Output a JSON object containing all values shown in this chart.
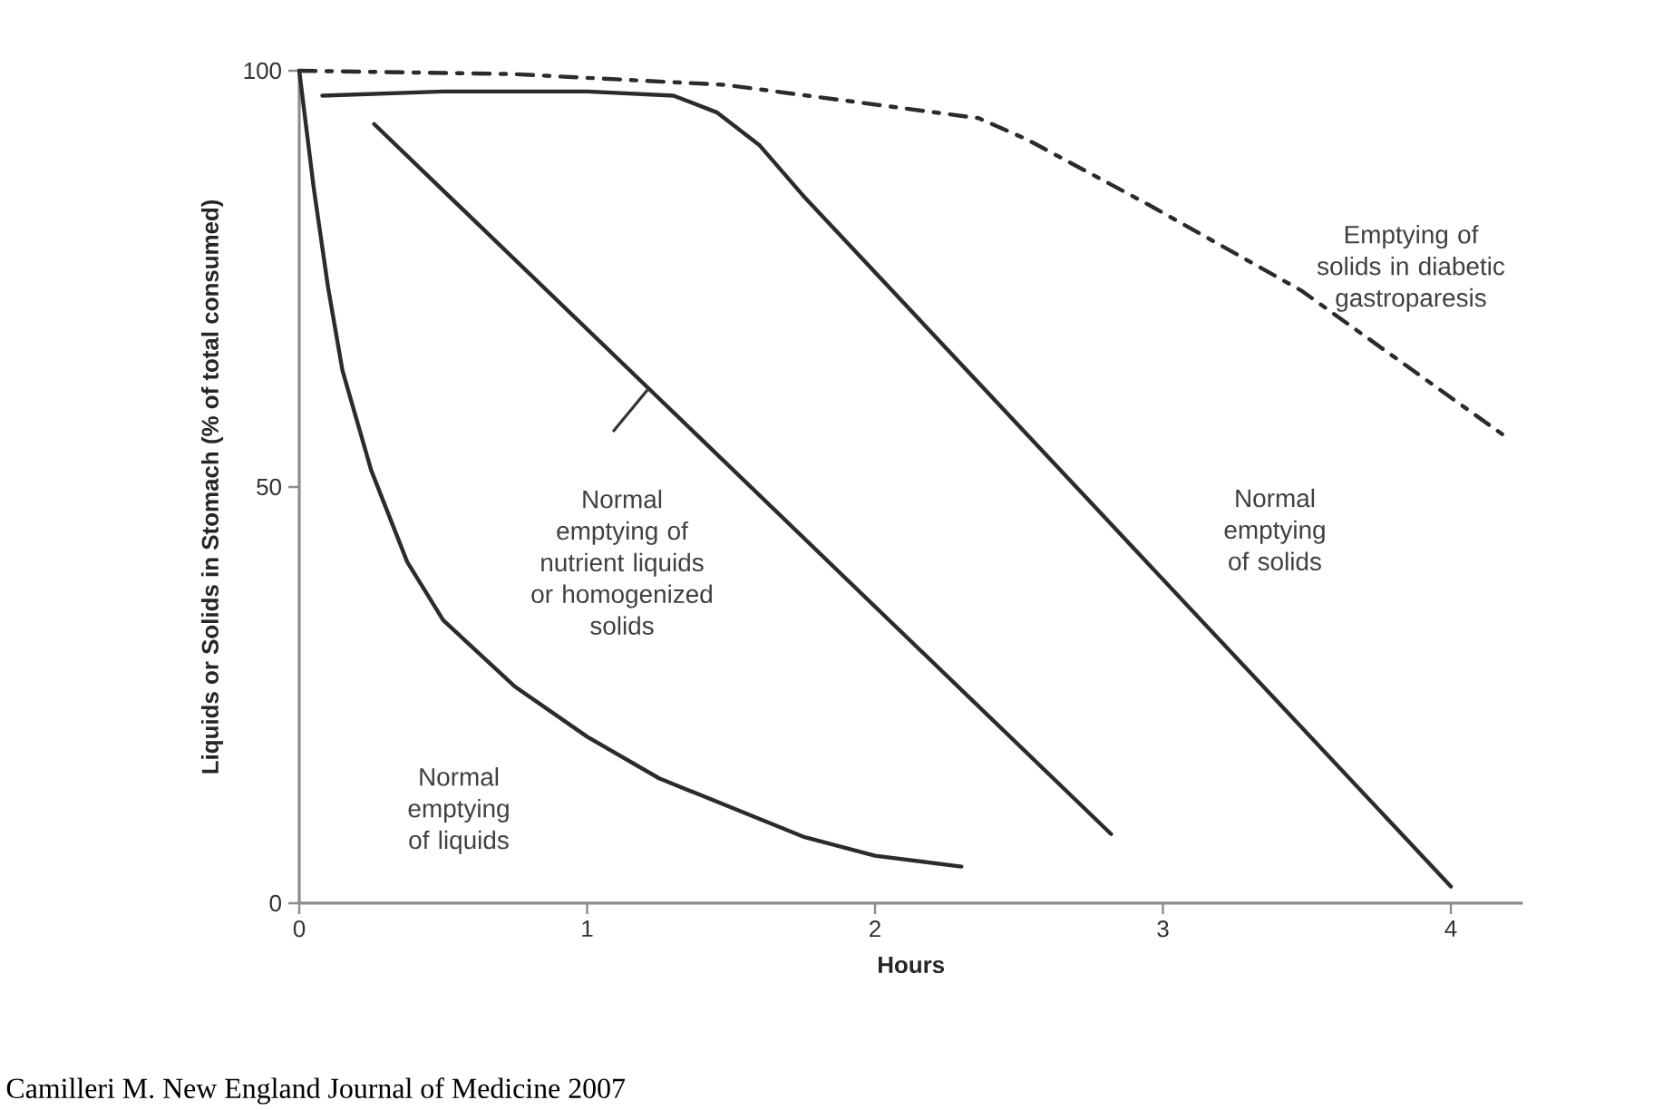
{
  "chart_data": {
    "type": "line",
    "xlabel": "Hours",
    "ylabel": "Liquids or Solids in Stomach (% of total consumed)",
    "xlim": [
      0,
      4.25
    ],
    "ylim": [
      0,
      100
    ],
    "xticks": [
      0,
      1,
      2,
      3,
      4
    ],
    "yticks": [
      0,
      50,
      100
    ],
    "marker": "none",
    "series": [
      {
        "color": "#2b2b2b",
        "line_style": "solid",
        "x": [
          0,
          0.05,
          0.1,
          0.15,
          0.25,
          0.375,
          0.5,
          0.75,
          1,
          1.25,
          1.5,
          1.75,
          2,
          2.3
        ],
        "values": [
          100,
          86,
          74,
          64,
          52,
          41,
          34,
          26,
          20,
          15,
          11.5,
          8,
          5.7,
          4.4
        ]
      },
      {
        "color": "#2b2b2b",
        "line_style": "solid",
        "x": [
          0.26,
          2.82
        ],
        "values": [
          93.6,
          8.3
        ]
      },
      {
        "color": "#2b2b2b",
        "line_style": "solid",
        "x": [
          0.08,
          0.5,
          1,
          1.3,
          1.45,
          1.6,
          1.75,
          4
        ],
        "values": [
          97,
          97.5,
          97.5,
          97,
          95,
          91,
          85,
          2
        ]
      },
      {
        "color": "#2b2b2b",
        "line_style": "dashed",
        "x": [
          0,
          0.74,
          1.48,
          2.36,
          2.53,
          2.95,
          3.48,
          4.2
        ],
        "values": [
          100,
          99.6,
          98.3,
          94.3,
          91.7,
          83.9,
          73.6,
          55.8
        ]
      }
    ],
    "annotations": [
      "Emptying of solids in diabetic gastroparesis",
      "Normal emptying of nutrient liquids or homogenized solids",
      "Normal emptying of solids",
      "Normal emptying of liquids",
      "Camilleri M. New England Journal of Medicine 2007"
    ]
  }
}
